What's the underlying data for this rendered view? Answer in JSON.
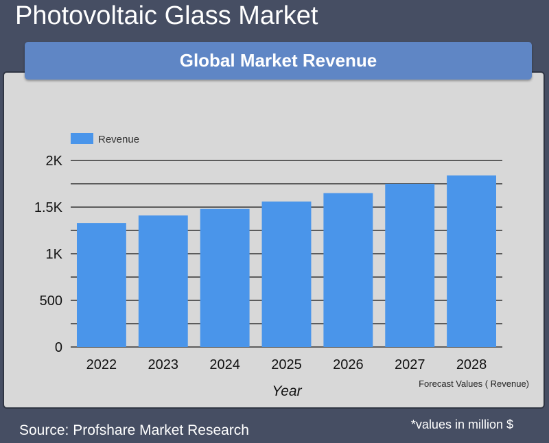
{
  "page": {
    "title": "Photovoltaic Glass Market",
    "subtitle": "Global Market Revenue",
    "source": "Source: Profshare Market Research",
    "units_note": "*values in million $"
  },
  "colors": {
    "background": "#464e63",
    "card": "#d8d8d8",
    "banner": "#5f86c5",
    "bar": "#4a95ea"
  },
  "chart_data": {
    "type": "bar",
    "title": "",
    "xlabel": "Year",
    "ylabel": "",
    "categories": [
      "2022",
      "2023",
      "2024",
      "2025",
      "2026",
      "2027",
      "2028"
    ],
    "series": [
      {
        "name": "Revenue",
        "values": [
          1330,
          1410,
          1480,
          1560,
          1650,
          1750,
          1840
        ]
      }
    ],
    "ylim": [
      0,
      2000
    ],
    "yticks": [
      0,
      500,
      1000,
      1500,
      2000
    ],
    "ytick_labels": [
      "0",
      "500",
      "1K",
      "1.5K",
      "2K"
    ],
    "minor_gridlines": true,
    "legend": "top-left",
    "annotation": "Forecast Values ( Revenue)"
  }
}
